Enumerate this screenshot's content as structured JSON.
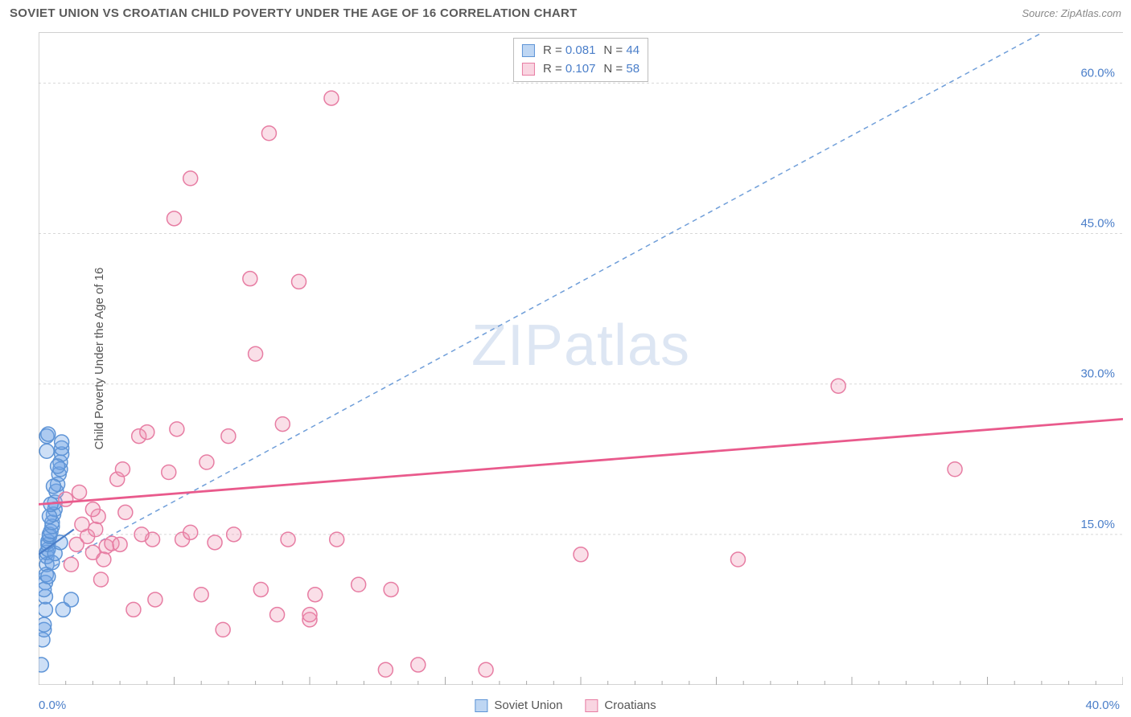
{
  "header": {
    "title": "SOVIET UNION VS CROATIAN CHILD POVERTY UNDER THE AGE OF 16 CORRELATION CHART",
    "source": "Source: ZipAtlas.com"
  },
  "ylabel": "Child Poverty Under the Age of 16",
  "watermark": {
    "bold": "ZIP",
    "light": "atlas"
  },
  "chart": {
    "type": "scatter",
    "xlim": [
      0,
      40
    ],
    "ylim": [
      0,
      65
    ],
    "background_color": "#ffffff",
    "grid_color": "#d8d8d8",
    "axis_color": "#a8a8a8",
    "tick_color": "#a8a8a8",
    "ytick_labels": [
      {
        "v": 15,
        "label": "15.0%"
      },
      {
        "v": 30,
        "label": "30.0%"
      },
      {
        "v": 45,
        "label": "45.0%"
      },
      {
        "v": 60,
        "label": "60.0%"
      }
    ],
    "xtick_major": [
      0,
      5,
      10,
      15,
      20,
      25,
      30,
      35,
      40
    ],
    "xlabel_min": "0.0%",
    "xlabel_max": "40.0%",
    "ylabel_color": "#4a7ec9",
    "marker_radius": 9,
    "marker_stroke_width": 1.5,
    "series": [
      {
        "key": "soviet",
        "fill": "rgba(111,163,228,0.35)",
        "stroke": "#5e94d6",
        "points": [
          [
            0.1,
            2.0
          ],
          [
            0.15,
            4.5
          ],
          [
            0.2,
            5.5
          ],
          [
            0.2,
            6.0
          ],
          [
            0.25,
            7.5
          ],
          [
            0.25,
            8.8
          ],
          [
            0.25,
            10.2
          ],
          [
            0.28,
            11.0
          ],
          [
            0.3,
            12.0
          ],
          [
            0.3,
            12.8
          ],
          [
            0.3,
            13.2
          ],
          [
            0.35,
            13.5
          ],
          [
            0.35,
            14.0
          ],
          [
            0.35,
            14.3
          ],
          [
            0.4,
            14.8
          ],
          [
            0.4,
            15.0
          ],
          [
            0.45,
            15.3
          ],
          [
            0.5,
            15.8
          ],
          [
            0.5,
            16.2
          ],
          [
            0.55,
            17.0
          ],
          [
            0.6,
            17.5
          ],
          [
            0.6,
            18.2
          ],
          [
            0.65,
            19.3
          ],
          [
            0.7,
            20.0
          ],
          [
            0.75,
            21.0
          ],
          [
            0.8,
            21.5
          ],
          [
            0.8,
            22.2
          ],
          [
            0.85,
            23.0
          ],
          [
            0.85,
            23.6
          ],
          [
            0.85,
            24.2
          ],
          [
            0.3,
            24.8
          ],
          [
            0.35,
            25.0
          ],
          [
            0.2,
            9.5
          ],
          [
            0.35,
            10.8
          ],
          [
            0.5,
            12.2
          ],
          [
            0.6,
            13.1
          ],
          [
            0.4,
            16.8
          ],
          [
            0.45,
            18.0
          ],
          [
            0.55,
            19.8
          ],
          [
            0.7,
            21.8
          ],
          [
            0.3,
            23.3
          ],
          [
            0.8,
            14.2
          ],
          [
            1.2,
            8.5
          ],
          [
            0.9,
            7.5
          ]
        ]
      },
      {
        "key": "croatian",
        "fill": "rgba(240,150,180,0.30)",
        "stroke": "#e77da3",
        "points": [
          [
            1.2,
            12.0
          ],
          [
            1.4,
            14.0
          ],
          [
            1.8,
            14.8
          ],
          [
            2.0,
            13.2
          ],
          [
            2.1,
            15.5
          ],
          [
            2.2,
            16.8
          ],
          [
            2.3,
            10.5
          ],
          [
            2.5,
            13.8
          ],
          [
            2.7,
            14.1
          ],
          [
            2.9,
            20.5
          ],
          [
            3.0,
            14.0
          ],
          [
            3.1,
            21.5
          ],
          [
            3.5,
            7.5
          ],
          [
            3.7,
            24.8
          ],
          [
            4.0,
            25.2
          ],
          [
            4.2,
            14.5
          ],
          [
            4.3,
            8.5
          ],
          [
            4.8,
            21.2
          ],
          [
            5.0,
            46.5
          ],
          [
            5.1,
            25.5
          ],
          [
            5.3,
            14.5
          ],
          [
            5.6,
            15.2
          ],
          [
            5.6,
            50.5
          ],
          [
            6.0,
            9.0
          ],
          [
            6.2,
            22.2
          ],
          [
            6.5,
            14.2
          ],
          [
            6.8,
            5.5
          ],
          [
            7.0,
            24.8
          ],
          [
            7.2,
            15.0
          ],
          [
            7.8,
            40.5
          ],
          [
            8.0,
            33.0
          ],
          [
            8.2,
            9.5
          ],
          [
            8.5,
            55.0
          ],
          [
            8.8,
            7.0
          ],
          [
            9.0,
            26.0
          ],
          [
            9.2,
            14.5
          ],
          [
            9.6,
            40.2
          ],
          [
            10.0,
            6.5
          ],
          [
            10.0,
            7.0
          ],
          [
            10.2,
            9.0
          ],
          [
            10.8,
            58.5
          ],
          [
            11.0,
            14.5
          ],
          [
            11.8,
            10.0
          ],
          [
            12.8,
            1.5
          ],
          [
            13.0,
            9.5
          ],
          [
            14.0,
            2.0
          ],
          [
            16.5,
            1.5
          ],
          [
            20.0,
            13.0
          ],
          [
            25.8,
            12.5
          ],
          [
            29.5,
            29.8
          ],
          [
            33.8,
            21.5
          ],
          [
            1.0,
            18.5
          ],
          [
            1.5,
            19.2
          ],
          [
            1.6,
            16.0
          ],
          [
            2.0,
            17.5
          ],
          [
            2.4,
            12.5
          ],
          [
            3.8,
            15.0
          ],
          [
            3.2,
            17.2
          ]
        ]
      }
    ],
    "trend_lines": [
      {
        "key": "soviet_dashed",
        "stroke": "#6f9ed9",
        "width": 1.5,
        "dash": "6,5",
        "x1": 0,
        "y1": 11.0,
        "x2": 37.0,
        "y2": 65.0
      },
      {
        "key": "soviet_solid",
        "stroke": "#4a7ec9",
        "width": 2.2,
        "dash": "",
        "x1": 0,
        "y1": 13.0,
        "x2": 1.3,
        "y2": 15.5
      },
      {
        "key": "croatian_solid",
        "stroke": "#e95a8c",
        "width": 2.8,
        "dash": "",
        "x1": 0,
        "y1": 18.0,
        "x2": 40.0,
        "y2": 26.5
      }
    ]
  },
  "r_legend": {
    "rows": [
      {
        "swatch_fill": "rgba(111,163,228,0.45)",
        "swatch_stroke": "#5e94d6",
        "r": "0.081",
        "n": "44"
      },
      {
        "swatch_fill": "rgba(240,150,180,0.40)",
        "swatch_stroke": "#e77da3",
        "r": "0.107",
        "n": "58"
      }
    ],
    "r_label": "R =",
    "n_label": "N ="
  },
  "bottom_legend": {
    "items": [
      {
        "swatch_fill": "rgba(111,163,228,0.45)",
        "swatch_stroke": "#5e94d6",
        "label": "Soviet Union"
      },
      {
        "swatch_fill": "rgba(240,150,180,0.40)",
        "swatch_stroke": "#e77da3",
        "label": "Croatians"
      }
    ]
  }
}
